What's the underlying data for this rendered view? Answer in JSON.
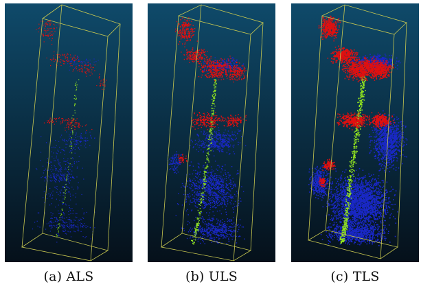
{
  "figure": {
    "panels": [
      {
        "id": "als",
        "caption": "(a) ALS"
      },
      {
        "id": "uls",
        "caption": "(b) ULS"
      },
      {
        "id": "tls",
        "caption": "(c) TLS"
      }
    ],
    "colors": {
      "background_top": "#0f4a6a",
      "background_bottom": "#05101a",
      "crown_points": "#e01010",
      "stem_points": "#8fe020",
      "understory_points": "#1a28c8",
      "bounding_box": "#c8c850"
    }
  }
}
